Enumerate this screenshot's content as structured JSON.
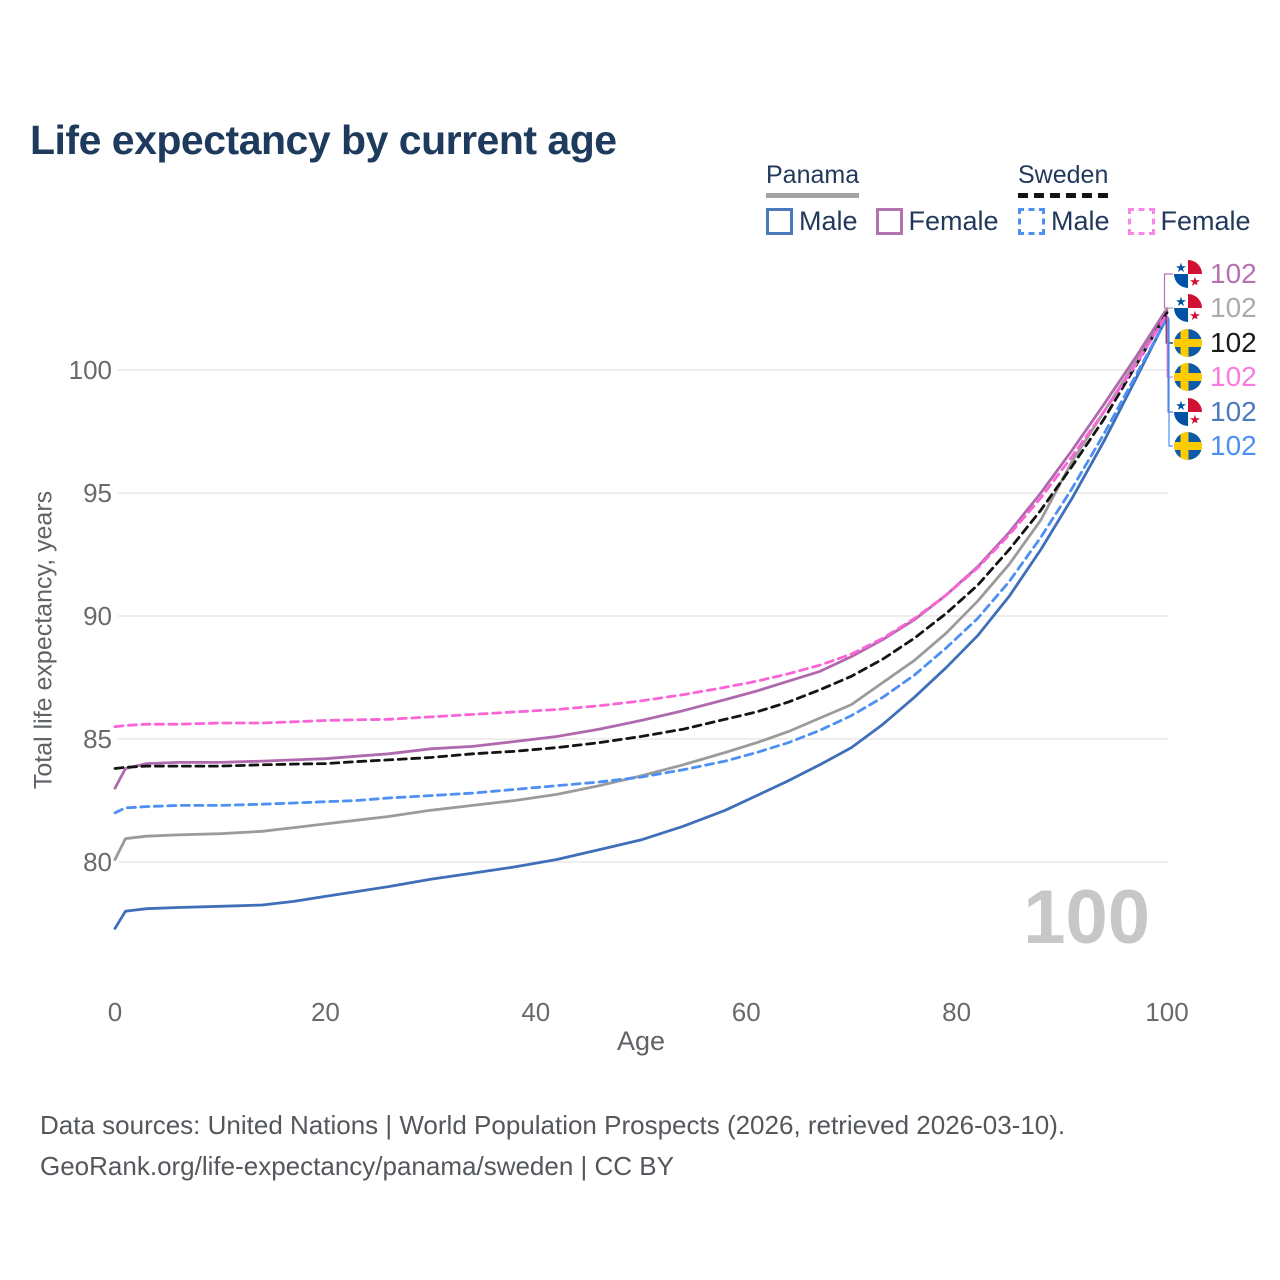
{
  "title": "Life expectancy by current age",
  "legend": {
    "groups": [
      {
        "country": "Panama",
        "style": "solid",
        "underline_color": "#a3a3a3",
        "items": [
          {
            "label": "Male",
            "color": "#4a7abc"
          },
          {
            "label": "Female",
            "color": "#b273ae"
          }
        ]
      },
      {
        "country": "Sweden",
        "style": "dashed",
        "underline_color": "#141414",
        "items": [
          {
            "label": "Male",
            "color": "#4d8ff2"
          },
          {
            "label": "Female",
            "color": "#fb87e4"
          }
        ]
      }
    ]
  },
  "axes": {
    "x_title": "Age",
    "y_title": "Total life expectancy, years"
  },
  "age_indicator": "100",
  "chart_data": {
    "type": "line",
    "title": "Life expectancy by current age",
    "xlabel": "Age",
    "ylabel": "Total life expectancy, years",
    "xlim": [
      0,
      100
    ],
    "ylim": [
      77,
      103.5
    ],
    "x_ticks": [
      0,
      20,
      40,
      60,
      80,
      100
    ],
    "y_ticks": [
      80,
      85,
      90,
      95,
      100
    ],
    "grid": true,
    "legend_position": "top-right",
    "colors": {
      "panama_male": "#3e6fb8",
      "panama_total": "#9b9b9b",
      "panama_female": "#b069ad",
      "sweden_male": "#4d8ff2",
      "sweden_total": "#141414",
      "sweden_female": "#fb64d7",
      "gridline": "#e9e9e9",
      "tick_text": "#6a6a6a",
      "watermark": "#c7c7c7"
    },
    "series": [
      {
        "id": "panama_male",
        "name": "Panama Male",
        "country": "Panama",
        "sex": "male",
        "color": "#3e6fb8",
        "dashed": false,
        "points": [
          [
            0,
            77.3
          ],
          [
            1,
            78.0
          ],
          [
            3,
            78.1
          ],
          [
            6,
            78.15
          ],
          [
            10,
            78.2
          ],
          [
            14,
            78.25
          ],
          [
            17,
            78.4
          ],
          [
            20,
            78.6
          ],
          [
            23,
            78.8
          ],
          [
            26,
            79.0
          ],
          [
            30,
            79.3
          ],
          [
            34,
            79.55
          ],
          [
            38,
            79.8
          ],
          [
            42,
            80.1
          ],
          [
            46,
            80.5
          ],
          [
            50,
            80.9
          ],
          [
            54,
            81.45
          ],
          [
            58,
            82.1
          ],
          [
            61,
            82.7
          ],
          [
            64,
            83.3
          ],
          [
            67,
            83.95
          ],
          [
            70,
            84.65
          ],
          [
            73,
            85.6
          ],
          [
            76,
            86.7
          ],
          [
            79,
            87.9
          ],
          [
            82,
            89.2
          ],
          [
            85,
            90.8
          ],
          [
            88,
            92.7
          ],
          [
            91,
            94.8
          ],
          [
            94,
            97.1
          ],
          [
            97,
            99.6
          ],
          [
            100,
            102.15
          ]
        ]
      },
      {
        "id": "panama_total",
        "name": "Panama",
        "country": "Panama",
        "sex": "total",
        "color": "#9b9b9b",
        "dashed": false,
        "points": [
          [
            0,
            80.1
          ],
          [
            1,
            80.95
          ],
          [
            3,
            81.05
          ],
          [
            6,
            81.1
          ],
          [
            10,
            81.15
          ],
          [
            14,
            81.25
          ],
          [
            17,
            81.4
          ],
          [
            20,
            81.55
          ],
          [
            23,
            81.7
          ],
          [
            26,
            81.85
          ],
          [
            30,
            82.1
          ],
          [
            34,
            82.3
          ],
          [
            38,
            82.5
          ],
          [
            42,
            82.75
          ],
          [
            46,
            83.1
          ],
          [
            50,
            83.5
          ],
          [
            54,
            83.95
          ],
          [
            58,
            84.45
          ],
          [
            61,
            84.85
          ],
          [
            64,
            85.3
          ],
          [
            67,
            85.85
          ],
          [
            70,
            86.4
          ],
          [
            73,
            87.3
          ],
          [
            76,
            88.2
          ],
          [
            79,
            89.3
          ],
          [
            82,
            90.6
          ],
          [
            85,
            92.1
          ],
          [
            88,
            93.9
          ],
          [
            91,
            96.3
          ],
          [
            94,
            98.3
          ],
          [
            97,
            100.3
          ],
          [
            100,
            102.4
          ]
        ]
      },
      {
        "id": "panama_female",
        "name": "Panama Female",
        "country": "Panama",
        "sex": "female",
        "color": "#b069ad",
        "dashed": false,
        "points": [
          [
            0,
            83.0
          ],
          [
            1,
            83.8
          ],
          [
            3,
            84.0
          ],
          [
            6,
            84.05
          ],
          [
            10,
            84.05
          ],
          [
            14,
            84.1
          ],
          [
            17,
            84.15
          ],
          [
            20,
            84.2
          ],
          [
            23,
            84.3
          ],
          [
            26,
            84.4
          ],
          [
            30,
            84.6
          ],
          [
            34,
            84.7
          ],
          [
            38,
            84.9
          ],
          [
            42,
            85.1
          ],
          [
            46,
            85.4
          ],
          [
            50,
            85.75
          ],
          [
            54,
            86.15
          ],
          [
            58,
            86.6
          ],
          [
            61,
            86.95
          ],
          [
            64,
            87.35
          ],
          [
            67,
            87.75
          ],
          [
            70,
            88.35
          ],
          [
            73,
            89.05
          ],
          [
            76,
            89.85
          ],
          [
            79,
            90.85
          ],
          [
            82,
            92.0
          ],
          [
            85,
            93.4
          ],
          [
            88,
            95.0
          ],
          [
            91,
            96.75
          ],
          [
            94,
            98.6
          ],
          [
            97,
            100.5
          ],
          [
            100,
            102.5
          ]
        ]
      },
      {
        "id": "sweden_male",
        "name": "Sweden Male",
        "country": "Sweden",
        "sex": "male",
        "color": "#4d8ff2",
        "dashed": true,
        "points": [
          [
            0,
            82.0
          ],
          [
            1,
            82.2
          ],
          [
            3,
            82.25
          ],
          [
            6,
            82.3
          ],
          [
            10,
            82.3
          ],
          [
            14,
            82.35
          ],
          [
            17,
            82.4
          ],
          [
            20,
            82.45
          ],
          [
            23,
            82.5
          ],
          [
            26,
            82.6
          ],
          [
            30,
            82.7
          ],
          [
            34,
            82.8
          ],
          [
            38,
            82.95
          ],
          [
            42,
            83.1
          ],
          [
            46,
            83.25
          ],
          [
            50,
            83.45
          ],
          [
            54,
            83.75
          ],
          [
            58,
            84.1
          ],
          [
            61,
            84.45
          ],
          [
            64,
            84.85
          ],
          [
            67,
            85.35
          ],
          [
            70,
            85.95
          ],
          [
            73,
            86.7
          ],
          [
            76,
            87.6
          ],
          [
            79,
            88.7
          ],
          [
            82,
            89.9
          ],
          [
            85,
            91.4
          ],
          [
            88,
            93.2
          ],
          [
            91,
            95.2
          ],
          [
            94,
            97.4
          ],
          [
            97,
            99.75
          ],
          [
            100,
            102.1
          ]
        ]
      },
      {
        "id": "sweden_total",
        "name": "Sweden",
        "country": "Sweden",
        "sex": "total",
        "color": "#141414",
        "dashed": true,
        "points": [
          [
            0,
            83.8
          ],
          [
            1,
            83.85
          ],
          [
            3,
            83.9
          ],
          [
            6,
            83.9
          ],
          [
            10,
            83.9
          ],
          [
            14,
            83.95
          ],
          [
            17,
            83.98
          ],
          [
            20,
            84.0
          ],
          [
            23,
            84.08
          ],
          [
            26,
            84.15
          ],
          [
            30,
            84.25
          ],
          [
            34,
            84.4
          ],
          [
            38,
            84.5
          ],
          [
            42,
            84.65
          ],
          [
            46,
            84.85
          ],
          [
            50,
            85.1
          ],
          [
            54,
            85.4
          ],
          [
            58,
            85.8
          ],
          [
            61,
            86.1
          ],
          [
            64,
            86.5
          ],
          [
            67,
            87.0
          ],
          [
            70,
            87.55
          ],
          [
            73,
            88.25
          ],
          [
            76,
            89.1
          ],
          [
            79,
            90.1
          ],
          [
            82,
            91.25
          ],
          [
            85,
            92.7
          ],
          [
            88,
            94.3
          ],
          [
            91,
            96.1
          ],
          [
            94,
            98.0
          ],
          [
            97,
            100.15
          ],
          [
            100,
            102.33
          ]
        ]
      },
      {
        "id": "sweden_female",
        "name": "Sweden Female",
        "country": "Sweden",
        "sex": "female",
        "color": "#fb64d7",
        "dashed": true,
        "points": [
          [
            0,
            85.5
          ],
          [
            1,
            85.55
          ],
          [
            3,
            85.6
          ],
          [
            6,
            85.6
          ],
          [
            10,
            85.65
          ],
          [
            14,
            85.65
          ],
          [
            17,
            85.7
          ],
          [
            20,
            85.75
          ],
          [
            23,
            85.78
          ],
          [
            26,
            85.8
          ],
          [
            30,
            85.9
          ],
          [
            34,
            86.0
          ],
          [
            38,
            86.1
          ],
          [
            42,
            86.2
          ],
          [
            46,
            86.35
          ],
          [
            50,
            86.55
          ],
          [
            54,
            86.8
          ],
          [
            58,
            87.1
          ],
          [
            61,
            87.35
          ],
          [
            64,
            87.65
          ],
          [
            67,
            88.0
          ],
          [
            70,
            88.45
          ],
          [
            73,
            89.1
          ],
          [
            76,
            89.9
          ],
          [
            79,
            90.85
          ],
          [
            82,
            91.95
          ],
          [
            85,
            93.3
          ],
          [
            88,
            94.8
          ],
          [
            91,
            96.5
          ],
          [
            94,
            98.3
          ],
          [
            97,
            100.2
          ],
          [
            100,
            102.27
          ]
        ]
      }
    ],
    "end_labels": [
      {
        "series": "panama_female",
        "flag": "panama",
        "value": "102",
        "color": "#b671b2"
      },
      {
        "series": "panama_total",
        "flag": "panama",
        "value": "102",
        "color": "#ababab"
      },
      {
        "series": "sweden_total",
        "flag": "sweden",
        "value": "102",
        "color": "#1a1a1a"
      },
      {
        "series": "sweden_female",
        "flag": "sweden",
        "value": "102",
        "color": "#fb7ae0"
      },
      {
        "series": "panama_male",
        "flag": "panama",
        "value": "102",
        "color": "#4a7ac0"
      },
      {
        "series": "sweden_male",
        "flag": "sweden",
        "value": "102",
        "color": "#4d8ff2"
      }
    ],
    "flag_colors": {
      "panama_blue": "#0052a5",
      "panama_red": "#d21034",
      "sweden_blue": "#0e5aa6",
      "sweden_yellow": "#fecb00"
    }
  },
  "footer": {
    "line1": "Data sources: United Nations | World Population Prospects (2026, retrieved 2026-03-10).",
    "line2": "GeoRank.org/life-expectancy/panama/sweden | CC BY"
  }
}
